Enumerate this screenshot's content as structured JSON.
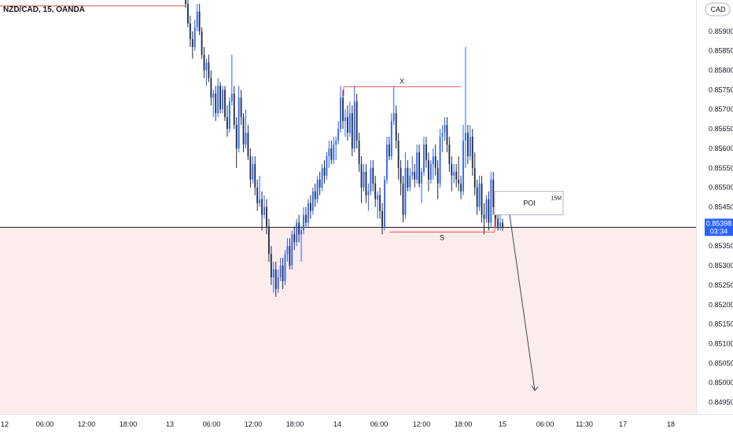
{
  "header": {
    "symbol_title": "NZD/CAD, 15, OANDA",
    "currency": "CAD"
  },
  "colors": {
    "bull": "#2962ff",
    "bear": "#1f2a44",
    "zone": "#fdecec",
    "level_line": "#e25656",
    "price_line": "#131722",
    "price_badge": "#2962ff",
    "axis_text": "#131722",
    "arrow": "#434651"
  },
  "chart_data": {
    "type": "candlestick",
    "instrument": "NZD/CAD",
    "timeframe": "15",
    "source": "OANDA",
    "ylim": [
      0.8492,
      0.8598
    ],
    "y_ticks": [
      "0.85900",
      "0.85850",
      "0.85800",
      "0.85750",
      "0.85700",
      "0.85650",
      "0.85600",
      "0.85550",
      "0.85500",
      "0.85450",
      "0.85350",
      "0.85300",
      "0.85250",
      "0.85200",
      "0.85150",
      "0.85100",
      "0.85050",
      "0.85000",
      "0.84950"
    ],
    "x_ticks": [
      "12",
      "06:00",
      "12:00",
      "18:00",
      "13",
      "06:00",
      "12:00",
      "18:00",
      "14",
      "06:00",
      "12:00",
      "18:00",
      "15",
      "06:00",
      "11:30",
      "17",
      "18"
    ],
    "current_price": {
      "value": 0.85398,
      "label": "0.85398",
      "countdown": "03:34"
    },
    "annotations": {
      "top_level_price": 0.85965,
      "x_level": {
        "label": "X",
        "price": 0.85758
      },
      "s_level": {
        "label": "S",
        "price": 0.85386
      },
      "poi": {
        "label": "POI",
        "timeframe_label": "15M",
        "top_price": 0.8549,
        "bottom_price": 0.8543
      },
      "projection": {
        "from_price": 0.8543,
        "to_price": 0.8498
      }
    },
    "candles": [
      [
        0.8601,
        0.8603,
        0.8596,
        0.8597
      ],
      [
        0.8597,
        0.8599,
        0.8591,
        0.8592
      ],
      [
        0.8592,
        0.8594,
        0.8586,
        0.8588
      ],
      [
        0.8588,
        0.859,
        0.8583,
        0.8586
      ],
      [
        0.8586,
        0.8593,
        0.8585,
        0.8591
      ],
      [
        0.8591,
        0.8597,
        0.859,
        0.8595
      ],
      [
        0.8595,
        0.8597,
        0.8589,
        0.859
      ],
      [
        0.859,
        0.8591,
        0.8583,
        0.8584
      ],
      [
        0.8584,
        0.8586,
        0.8578,
        0.858
      ],
      [
        0.858,
        0.8583,
        0.8576,
        0.8582
      ],
      [
        0.8582,
        0.8584,
        0.8577,
        0.8578
      ],
      [
        0.8578,
        0.858,
        0.8571,
        0.8573
      ],
      [
        0.8573,
        0.8575,
        0.8568,
        0.8574
      ],
      [
        0.8574,
        0.8576,
        0.8567,
        0.8569
      ],
      [
        0.8569,
        0.8578,
        0.8568,
        0.8576
      ],
      [
        0.8576,
        0.8577,
        0.8569,
        0.857
      ],
      [
        0.857,
        0.8576,
        0.8569,
        0.8575
      ],
      [
        0.8575,
        0.8576,
        0.8567,
        0.8568
      ],
      [
        0.8568,
        0.8571,
        0.8563,
        0.8565
      ],
      [
        0.8565,
        0.8573,
        0.8564,
        0.8572
      ],
      [
        0.8572,
        0.8584,
        0.8571,
        0.8574
      ],
      [
        0.8574,
        0.8576,
        0.8565,
        0.8566
      ],
      [
        0.8566,
        0.8568,
        0.8555,
        0.856
      ],
      [
        0.856,
        0.8576,
        0.8559,
        0.8573
      ],
      [
        0.8573,
        0.8575,
        0.8566,
        0.8568
      ],
      [
        0.8568,
        0.8569,
        0.8559,
        0.8561
      ],
      [
        0.8561,
        0.857,
        0.856,
        0.8564
      ],
      [
        0.8564,
        0.8566,
        0.8557,
        0.8558
      ],
      [
        0.8558,
        0.856,
        0.855,
        0.8552
      ],
      [
        0.8552,
        0.8558,
        0.8551,
        0.8556
      ],
      [
        0.8556,
        0.8558,
        0.8548,
        0.855
      ],
      [
        0.855,
        0.8552,
        0.8544,
        0.8546
      ],
      [
        0.8546,
        0.8553,
        0.8545,
        0.8547
      ],
      [
        0.8547,
        0.8549,
        0.8539,
        0.8543
      ],
      [
        0.8543,
        0.8548,
        0.8542,
        0.8545
      ],
      [
        0.8545,
        0.8547,
        0.8538,
        0.854
      ],
      [
        0.854,
        0.8542,
        0.8531,
        0.8533
      ],
      [
        0.8533,
        0.8535,
        0.8525,
        0.8527
      ],
      [
        0.8527,
        0.8531,
        0.8523,
        0.8529
      ],
      [
        0.8529,
        0.8531,
        0.8522,
        0.8524
      ],
      [
        0.8524,
        0.8529,
        0.8523,
        0.8527
      ],
      [
        0.8527,
        0.8532,
        0.8526,
        0.853
      ],
      [
        0.853,
        0.8532,
        0.8524,
        0.8526
      ],
      [
        0.8526,
        0.8534,
        0.8525,
        0.8533
      ],
      [
        0.8533,
        0.8537,
        0.8531,
        0.8535
      ],
      [
        0.8535,
        0.8537,
        0.8529,
        0.853
      ],
      [
        0.853,
        0.8539,
        0.8529,
        0.8538
      ],
      [
        0.8538,
        0.854,
        0.8534,
        0.8536
      ],
      [
        0.8536,
        0.8542,
        0.8535,
        0.8541
      ],
      [
        0.8541,
        0.8543,
        0.8536,
        0.8538
      ],
      [
        0.8538,
        0.854,
        0.8531,
        0.8539
      ],
      [
        0.8539,
        0.8545,
        0.8538,
        0.8543
      ],
      [
        0.8543,
        0.8545,
        0.854,
        0.8541
      ],
      [
        0.8541,
        0.8547,
        0.854,
        0.8546
      ],
      [
        0.8546,
        0.8548,
        0.8542,
        0.8544
      ],
      [
        0.8544,
        0.855,
        0.8543,
        0.8549
      ],
      [
        0.8549,
        0.8551,
        0.8545,
        0.8547
      ],
      [
        0.8547,
        0.8553,
        0.8546,
        0.8552
      ],
      [
        0.8552,
        0.8554,
        0.8548,
        0.855
      ],
      [
        0.855,
        0.8556,
        0.8549,
        0.8555
      ],
      [
        0.8555,
        0.8557,
        0.8551,
        0.8553
      ],
      [
        0.8553,
        0.8559,
        0.8552,
        0.8558
      ],
      [
        0.8558,
        0.8562,
        0.8555,
        0.856
      ],
      [
        0.856,
        0.8562,
        0.8556,
        0.8557
      ],
      [
        0.8557,
        0.8563,
        0.8556,
        0.8561
      ],
      [
        0.8561,
        0.8563,
        0.8557,
        0.8562
      ],
      [
        0.8562,
        0.8567,
        0.8561,
        0.8565
      ],
      [
        0.8565,
        0.8576,
        0.8564,
        0.8573
      ],
      [
        0.8573,
        0.8575,
        0.8565,
        0.8567
      ],
      [
        0.8567,
        0.857,
        0.8563,
        0.8568
      ],
      [
        0.8568,
        0.8571,
        0.8562,
        0.8564
      ],
      [
        0.8564,
        0.8572,
        0.8563,
        0.8569
      ],
      [
        0.8569,
        0.8571,
        0.8558,
        0.856
      ],
      [
        0.856,
        0.8576,
        0.8559,
        0.8572
      ],
      [
        0.8572,
        0.8574,
        0.856,
        0.8562
      ],
      [
        0.8562,
        0.8564,
        0.8554,
        0.8556
      ],
      [
        0.8556,
        0.8558,
        0.8546,
        0.855
      ],
      [
        0.855,
        0.8556,
        0.8549,
        0.8554
      ],
      [
        0.8554,
        0.8556,
        0.8546,
        0.8548
      ],
      [
        0.8548,
        0.8551,
        0.8544,
        0.8549
      ],
      [
        0.8549,
        0.8557,
        0.8548,
        0.8555
      ],
      [
        0.8555,
        0.8557,
        0.8549,
        0.8551
      ],
      [
        0.8551,
        0.8553,
        0.8545,
        0.8547
      ],
      [
        0.8547,
        0.8549,
        0.8542,
        0.8548
      ],
      [
        0.8548,
        0.855,
        0.8542,
        0.8544
      ],
      [
        0.8544,
        0.8546,
        0.8538,
        0.854
      ],
      [
        0.854,
        0.8553,
        0.8539,
        0.8552
      ],
      [
        0.8552,
        0.8563,
        0.8551,
        0.8561
      ],
      [
        0.8561,
        0.8563,
        0.8557,
        0.8558
      ],
      [
        0.8558,
        0.8569,
        0.8557,
        0.8567
      ],
      [
        0.8567,
        0.8576,
        0.8566,
        0.8569
      ],
      [
        0.8569,
        0.8571,
        0.856,
        0.8562
      ],
      [
        0.8562,
        0.8564,
        0.8552,
        0.8555
      ],
      [
        0.8555,
        0.8557,
        0.8548,
        0.8551
      ],
      [
        0.8551,
        0.8553,
        0.8541,
        0.8543
      ],
      [
        0.8543,
        0.8559,
        0.8542,
        0.8555
      ],
      [
        0.8555,
        0.8557,
        0.8549,
        0.855
      ],
      [
        0.855,
        0.8555,
        0.8549,
        0.8553
      ],
      [
        0.8553,
        0.8558,
        0.8552,
        0.8554
      ],
      [
        0.8554,
        0.8556,
        0.855,
        0.8552
      ],
      [
        0.8552,
        0.8561,
        0.8551,
        0.8559
      ],
      [
        0.8559,
        0.8561,
        0.855,
        0.8551
      ],
      [
        0.8551,
        0.8555,
        0.8546,
        0.8554
      ],
      [
        0.8554,
        0.8563,
        0.8553,
        0.8561
      ],
      [
        0.8561,
        0.8563,
        0.8555,
        0.8557
      ],
      [
        0.8557,
        0.8559,
        0.8549,
        0.8552
      ],
      [
        0.8552,
        0.8557,
        0.8551,
        0.8556
      ],
      [
        0.8556,
        0.856,
        0.8552,
        0.8558
      ],
      [
        0.8558,
        0.8561,
        0.8553,
        0.8555
      ],
      [
        0.8555,
        0.8557,
        0.8547,
        0.8551
      ],
      [
        0.8551,
        0.8565,
        0.855,
        0.8563
      ],
      [
        0.8563,
        0.8566,
        0.8559,
        0.8564
      ],
      [
        0.8564,
        0.8568,
        0.8562,
        0.8566
      ],
      [
        0.8566,
        0.8568,
        0.8559,
        0.8561
      ],
      [
        0.8561,
        0.8563,
        0.8554,
        0.8556
      ],
      [
        0.8556,
        0.8558,
        0.8549,
        0.8553
      ],
      [
        0.8553,
        0.8556,
        0.8551,
        0.8554
      ],
      [
        0.8554,
        0.8556,
        0.855,
        0.8552
      ],
      [
        0.8552,
        0.8558,
        0.8549,
        0.8551
      ],
      [
        0.8551,
        0.8553,
        0.8547,
        0.8549
      ],
      [
        0.8549,
        0.8566,
        0.8548,
        0.8562
      ],
      [
        0.8562,
        0.8586,
        0.8555,
        0.8564
      ],
      [
        0.8564,
        0.8566,
        0.8556,
        0.8558
      ],
      [
        0.8558,
        0.8566,
        0.8557,
        0.8563
      ],
      [
        0.8563,
        0.8565,
        0.8553,
        0.8555
      ],
      [
        0.8555,
        0.8559,
        0.8548,
        0.855
      ],
      [
        0.855,
        0.8552,
        0.8543,
        0.8545
      ],
      [
        0.8545,
        0.8553,
        0.8544,
        0.8551
      ],
      [
        0.8551,
        0.8553,
        0.8541,
        0.8543
      ],
      [
        0.8543,
        0.8546,
        0.8538,
        0.8542
      ],
      [
        0.8542,
        0.8548,
        0.8541,
        0.8547
      ],
      [
        0.8547,
        0.8549,
        0.8539,
        0.8541
      ],
      [
        0.8541,
        0.8554,
        0.854,
        0.8552
      ],
      [
        0.8552,
        0.8554,
        0.8543,
        0.8545
      ],
      [
        0.8545,
        0.8547,
        0.854,
        0.8542
      ],
      [
        0.8542,
        0.8546,
        0.8539,
        0.854
      ],
      [
        0.854,
        0.8543,
        0.8539,
        0.8541
      ],
      [
        0.8541,
        0.8542,
        0.8539,
        0.85398
      ]
    ]
  }
}
